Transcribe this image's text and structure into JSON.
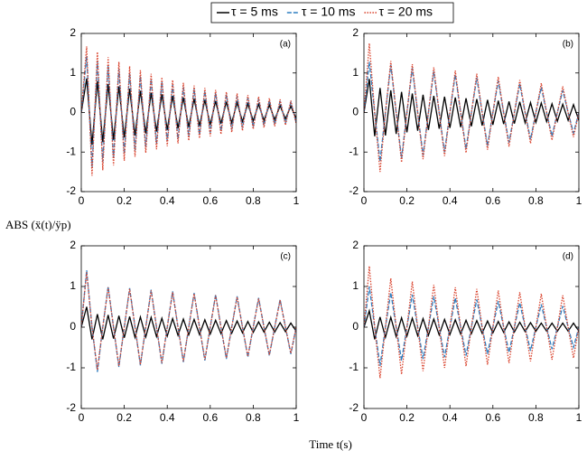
{
  "legend_position": "top",
  "x_label": "Time t(s)",
  "y_label": "ABS (ẍ(t)/ÿp)",
  "chart_data": [
    {
      "type": "line",
      "label": "(a)",
      "xlim": [
        0,
        1
      ],
      "ylim": [
        -2,
        2
      ],
      "xticks": [
        0,
        0.2,
        0.4,
        0.6,
        0.8,
        1
      ],
      "yticks": [
        -2,
        -1,
        0,
        1,
        2
      ],
      "x": [
        0,
        0.025,
        0.05,
        0.075,
        0.1,
        0.125,
        0.15,
        0.175,
        0.2,
        0.225,
        0.25,
        0.275,
        0.3,
        0.325,
        0.35,
        0.375,
        0.4,
        0.425,
        0.45,
        0.475,
        0.5,
        0.525,
        0.55,
        0.575,
        0.6,
        0.625,
        0.65,
        0.675,
        0.7,
        0.725,
        0.75,
        0.775,
        0.8,
        0.825,
        0.85,
        0.875,
        0.9,
        0.925,
        0.95,
        0.975,
        1
      ],
      "series": [
        {
          "name": "τ = 5 ms",
          "color": "#000000",
          "dash": "solid",
          "values": [
            0,
            0.86,
            -0.82,
            0.79,
            -0.75,
            0.72,
            -0.69,
            0.66,
            -0.63,
            0.6,
            -0.58,
            0.55,
            -0.53,
            0.5,
            -0.48,
            0.46,
            -0.44,
            0.42,
            -0.4,
            0.38,
            -0.37,
            0.35,
            -0.34,
            0.32,
            -0.31,
            0.29,
            -0.28,
            0.27,
            -0.26,
            0.25,
            -0.23,
            0.22,
            -0.21,
            0.21,
            -0.2,
            0.19,
            -0.18,
            0.17,
            -0.16,
            0.16,
            -0.15
          ]
        },
        {
          "name": "τ = 10 ms",
          "color": "#2f7fc1",
          "dash": "dashed",
          "values": [
            0,
            1.43,
            -1.37,
            1.31,
            -1.25,
            1.2,
            -1.15,
            1.1,
            -1.05,
            1,
            -0.96,
            0.92,
            -0.88,
            0.84,
            -0.8,
            0.77,
            -0.73,
            0.7,
            -0.67,
            0.64,
            -0.61,
            0.59,
            -0.56,
            0.54,
            -0.51,
            0.49,
            -0.47,
            0.45,
            -0.43,
            0.41,
            -0.39,
            0.37,
            -0.36,
            0.34,
            -0.33,
            0.31,
            -0.3,
            0.29,
            -0.27,
            0.26,
            -0.25
          ]
        },
        {
          "name": "τ = 20 ms",
          "color": "#d9412b",
          "dash": "dotted",
          "values": [
            0,
            1.67,
            -1.6,
            1.53,
            -1.46,
            1.4,
            -1.34,
            1.28,
            -1.22,
            1.17,
            -1.12,
            1.07,
            -1.02,
            0.98,
            -0.93,
            0.89,
            -0.85,
            0.82,
            -0.78,
            0.75,
            -0.71,
            0.68,
            -0.65,
            0.62,
            -0.6,
            0.57,
            -0.55,
            0.52,
            -0.5,
            0.48,
            -0.46,
            0.44,
            -0.42,
            0.4,
            -0.38,
            0.36,
            -0.35,
            0.33,
            -0.32,
            0.3,
            -0.29
          ]
        }
      ]
    },
    {
      "type": "line",
      "label": "(b)",
      "xlim": [
        0,
        1
      ],
      "ylim": [
        -2,
        2
      ],
      "xticks": [
        0,
        0.2,
        0.4,
        0.6,
        0.8,
        1
      ],
      "yticks": [
        -2,
        -1,
        0,
        1,
        2
      ],
      "x": [
        0,
        0.025,
        0.05,
        0.075,
        0.1,
        0.125,
        0.15,
        0.175,
        0.2,
        0.225,
        0.25,
        0.275,
        0.3,
        0.325,
        0.35,
        0.375,
        0.4,
        0.425,
        0.45,
        0.475,
        0.5,
        0.525,
        0.55,
        0.575,
        0.6,
        0.625,
        0.65,
        0.675,
        0.7,
        0.725,
        0.75,
        0.775,
        0.8,
        0.825,
        0.85,
        0.875,
        0.9,
        0.925,
        0.95,
        0.975,
        1
      ],
      "series": [
        {
          "color": "#000000",
          "dash": "solid",
          "values": [
            0,
            0.85,
            -0.6,
            0.62,
            -0.58,
            0.56,
            -0.54,
            0.52,
            -0.5,
            0.48,
            -0.46,
            0.45,
            -0.44,
            0.42,
            -0.41,
            0.4,
            -0.39,
            0.38,
            -0.37,
            0.36,
            -0.35,
            0.34,
            -0.33,
            0.32,
            -0.31,
            0.3,
            -0.29,
            0.28,
            -0.28,
            0.27,
            -0.26,
            0.25,
            -0.25,
            0.24,
            -0.23,
            0.22,
            -0.22,
            0.21,
            -0.2,
            0.2,
            -0.2
          ]
        },
        {
          "color": "#2f7fc1",
          "dash": "dashed",
          "values": [
            0,
            1.28,
            0,
            -1.24,
            0,
            1.2,
            0,
            -1.16,
            0,
            1.12,
            0,
            -1.08,
            0,
            1.04,
            0,
            -1,
            0,
            0.96,
            0,
            -0.92,
            0,
            0.88,
            0,
            -0.84,
            0,
            0.8,
            0,
            -0.76,
            0,
            0.72,
            0,
            -0.68,
            0,
            0.64,
            0,
            -0.6,
            0,
            0.56,
            0,
            -0.52,
            0
          ]
        },
        {
          "color": "#d9412b",
          "dash": "dotted",
          "values": [
            0,
            1.75,
            0,
            -1.5,
            0,
            1.3,
            0,
            -1.26,
            0,
            1.22,
            0,
            -1.18,
            0,
            1.14,
            0,
            -1.1,
            0,
            1.06,
            0,
            -1.02,
            0,
            0.98,
            0,
            -0.94,
            0,
            0.9,
            0,
            -0.86,
            0,
            0.82,
            0,
            -0.78,
            0,
            0.74,
            0,
            -0.7,
            0,
            0.66,
            0,
            -0.62,
            0
          ]
        }
      ]
    },
    {
      "type": "line",
      "label": "(c)",
      "xlim": [
        0,
        1
      ],
      "ylim": [
        -2,
        2
      ],
      "xticks": [
        0,
        0.2,
        0.4,
        0.6,
        0.8,
        1
      ],
      "yticks": [
        -2,
        -1,
        0,
        1,
        2
      ],
      "x": [
        0,
        0.025,
        0.05,
        0.075,
        0.1,
        0.125,
        0.15,
        0.175,
        0.2,
        0.225,
        0.25,
        0.275,
        0.3,
        0.325,
        0.35,
        0.375,
        0.4,
        0.425,
        0.45,
        0.475,
        0.5,
        0.525,
        0.55,
        0.575,
        0.6,
        0.625,
        0.65,
        0.675,
        0.7,
        0.725,
        0.75,
        0.775,
        0.8,
        0.825,
        0.85,
        0.875,
        0.9,
        0.925,
        0.95,
        0.975,
        1
      ],
      "series": [
        {
          "color": "#000000",
          "dash": "solid",
          "values": [
            0,
            0.5,
            -0.3,
            0.32,
            -0.3,
            0.3,
            -0.28,
            0.28,
            -0.26,
            0.26,
            -0.25,
            0.25,
            -0.24,
            0.24,
            -0.23,
            0.22,
            -0.22,
            0.21,
            -0.2,
            0.2,
            -0.19,
            0.19,
            -0.18,
            0.18,
            -0.17,
            0.17,
            -0.16,
            0.16,
            -0.15,
            0.15,
            -0.14,
            0.14,
            -0.13,
            0.13,
            -0.12,
            0.12,
            -0.12,
            0.11,
            -0.11,
            0.1,
            -0.1
          ]
        },
        {
          "color": "#2f7fc1",
          "dash": "dashed",
          "values": [
            0,
            1.4,
            0,
            -1.1,
            0,
            1,
            0,
            -0.98,
            0,
            0.96,
            0,
            -0.94,
            0,
            0.92,
            0,
            -0.9,
            0,
            0.88,
            0,
            -0.86,
            0,
            0.84,
            0,
            -0.82,
            0,
            0.8,
            0,
            -0.78,
            0,
            0.76,
            0,
            -0.74,
            0,
            0.72,
            0,
            -0.7,
            0,
            0.68,
            0,
            -0.66,
            0
          ]
        },
        {
          "color": "#d9412b",
          "dash": "dotted",
          "values": [
            0,
            1.35,
            0,
            -1.05,
            0,
            0.98,
            0,
            -0.96,
            0,
            0.94,
            0,
            -0.92,
            0,
            0.9,
            0,
            -0.88,
            0,
            0.86,
            0,
            -0.84,
            0,
            0.82,
            0,
            -0.8,
            0,
            0.78,
            0,
            -0.76,
            0,
            0.74,
            0,
            -0.72,
            0,
            0.7,
            0,
            -0.68,
            0,
            0.66,
            0,
            -0.64,
            0
          ]
        }
      ]
    },
    {
      "type": "line",
      "label": "(d)",
      "xlim": [
        0,
        1
      ],
      "ylim": [
        -2,
        2
      ],
      "xticks": [
        0,
        0.2,
        0.4,
        0.6,
        0.8,
        1
      ],
      "yticks": [
        -2,
        -1,
        0,
        1,
        2
      ],
      "x": [
        0,
        0.025,
        0.05,
        0.075,
        0.1,
        0.125,
        0.15,
        0.175,
        0.2,
        0.225,
        0.25,
        0.275,
        0.3,
        0.325,
        0.35,
        0.375,
        0.4,
        0.425,
        0.45,
        0.475,
        0.5,
        0.525,
        0.55,
        0.575,
        0.6,
        0.625,
        0.65,
        0.675,
        0.7,
        0.725,
        0.75,
        0.775,
        0.8,
        0.825,
        0.85,
        0.875,
        0.9,
        0.925,
        0.95,
        0.975,
        1
      ],
      "series": [
        {
          "color": "#000000",
          "dash": "solid",
          "values": [
            0,
            0.4,
            -0.3,
            0.25,
            -0.25,
            0.24,
            -0.23,
            0.23,
            -0.22,
            0.22,
            -0.21,
            0.21,
            -0.2,
            0.2,
            -0.19,
            0.19,
            -0.18,
            0.18,
            -0.17,
            0.17,
            -0.16,
            0.16,
            -0.15,
            0.15,
            -0.14,
            0.14,
            -0.13,
            0.13,
            -0.12,
            0.12,
            -0.11,
            0.11,
            -0.1,
            0.1,
            -0.1,
            0.1,
            -0.1,
            0.1,
            -0.1,
            0.1,
            -0.1
          ]
        },
        {
          "color": "#2f7fc1",
          "dash": "dashed",
          "values": [
            0,
            1,
            0,
            -0.95,
            0,
            0.85,
            0,
            -0.82,
            0,
            0.8,
            0,
            -0.78,
            0,
            0.76,
            0,
            -0.74,
            0,
            0.72,
            0,
            -0.7,
            0,
            0.68,
            0,
            -0.66,
            0,
            0.64,
            0,
            -0.62,
            0,
            0.6,
            0,
            -0.58,
            0,
            0.56,
            0,
            -0.54,
            0,
            0.52,
            0,
            -0.5,
            0
          ]
        },
        {
          "color": "#d9412b",
          "dash": "dotted",
          "values": [
            0,
            1.5,
            0,
            -1.25,
            0,
            1.2,
            0,
            -1.16,
            0,
            1.12,
            0,
            -1.08,
            0,
            1.04,
            0,
            -1,
            0,
            0.98,
            0,
            -0.96,
            0,
            0.94,
            0,
            -0.92,
            0,
            0.9,
            0,
            -0.88,
            0,
            0.86,
            0,
            -0.84,
            0,
            0.82,
            0,
            -0.8,
            0,
            0.78,
            0,
            -0.76,
            0
          ]
        }
      ]
    }
  ]
}
